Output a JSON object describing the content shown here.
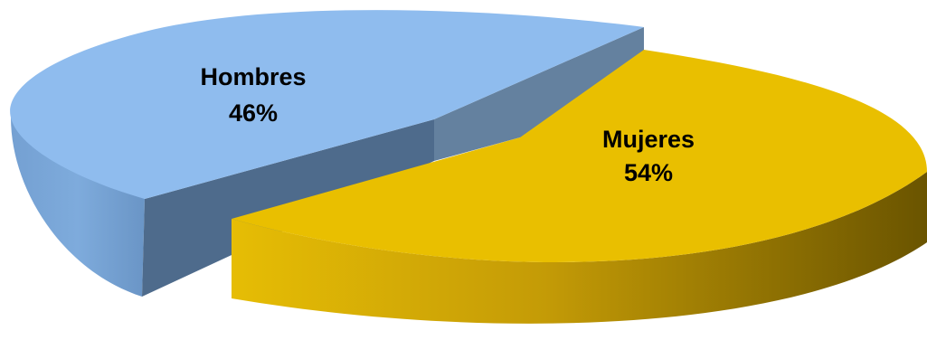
{
  "chart_data": {
    "type": "pie",
    "style": "3d-exploded",
    "categories": [
      "Hombres",
      "Mujeres"
    ],
    "values": [
      46,
      54
    ],
    "value_labels": [
      "46%",
      "54%"
    ],
    "unit": "%",
    "legend": "none",
    "colors": {
      "Hombres": "#8fbcee",
      "Mujeres": "#e9bf00"
    }
  }
}
